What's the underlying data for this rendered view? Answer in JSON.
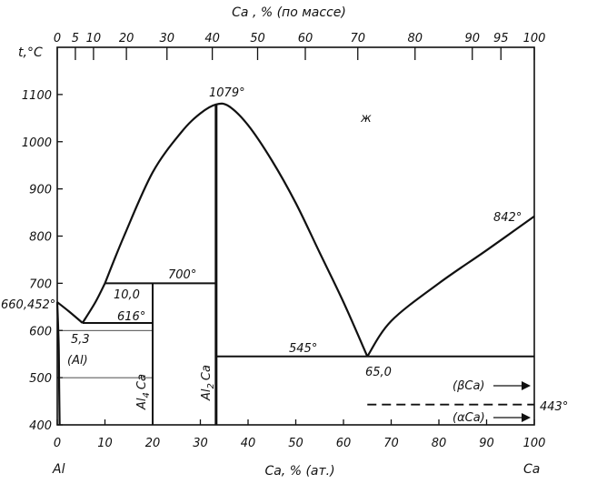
{
  "diagram": {
    "y_axis": {
      "label": "t,°C",
      "ticks": [
        400,
        500,
        600,
        700,
        800,
        900,
        1000,
        1100
      ],
      "range": [
        400,
        1200
      ]
    },
    "x_axis_bottom": {
      "title": "Ca, % (ат.)",
      "ticks": [
        "0",
        "10",
        "20",
        "30",
        "40",
        "50",
        "60",
        "70",
        "80",
        "90",
        "100"
      ],
      "left_end": "Al",
      "right_end": "Ca",
      "range": [
        0,
        100
      ]
    },
    "x_axis_top": {
      "title": "Ca , % (по массе)",
      "ticks": [
        {
          "label": "0",
          "at": 0
        },
        {
          "label": "5",
          "at": 3.8
        },
        {
          "label": "10",
          "at": 7.6
        },
        {
          "label": "20",
          "at": 14.5
        },
        {
          "label": "30",
          "at": 23
        },
        {
          "label": "40",
          "at": 32.5
        },
        {
          "label": "50",
          "at": 42
        },
        {
          "label": "60",
          "at": 52
        },
        {
          "label": "70",
          "at": 63
        },
        {
          "label": "80",
          "at": 75
        },
        {
          "label": "90",
          "at": 87
        },
        {
          "label": "95",
          "at": 93
        },
        {
          "label": "100",
          "at": 100
        }
      ]
    },
    "annotations": {
      "al_melt": "660,452°",
      "congruent": "1079°",
      "liquid": "ж",
      "ca_melt": "842°",
      "peritectic": "700°",
      "peri_comp": "10,0",
      "eutectic1": "616°",
      "eut1_comp": "5,3",
      "al_solid": "(Al)",
      "eutectic2": "545°",
      "eut2_comp": "65,0",
      "phase1": "Al4Ca",
      "phase1_base": "Al",
      "phase1_sub": "4",
      "phase1_tail": "Ca",
      "phase2_base": "Al",
      "phase2_sub": "2",
      "phase2_tail": "Ca",
      "beta": "(βCa)",
      "alpha": "(αCa)",
      "transition": "443°"
    },
    "curves": {
      "liquidus_al": [
        [
          0,
          660
        ],
        [
          2.5,
          640
        ],
        [
          5.3,
          616
        ]
      ],
      "liquidus_al4ca": [
        [
          5.3,
          616
        ],
        [
          8,
          660
        ],
        [
          10,
          700
        ]
      ],
      "liquidus_al2ca": [
        [
          10,
          700
        ],
        [
          14,
          800
        ],
        [
          20,
          935
        ],
        [
          26,
          1020
        ],
        [
          30,
          1060
        ],
        [
          33.3,
          1079
        ],
        [
          36,
          1075
        ],
        [
          40,
          1035
        ],
        [
          45,
          960
        ],
        [
          50,
          870
        ],
        [
          55,
          765
        ],
        [
          60,
          660
        ],
        [
          65,
          545
        ]
      ],
      "liquidus_ca": [
        [
          65,
          545
        ],
        [
          70,
          620
        ],
        [
          80,
          700
        ],
        [
          90,
          770
        ],
        [
          100,
          842
        ]
      ],
      "al_solidus": [
        [
          0,
          660
        ],
        [
          0.3,
          570
        ],
        [
          0.4,
          480
        ],
        [
          0.5,
          400
        ]
      ],
      "isotherm_616": [
        [
          5.3,
          616
        ],
        [
          20,
          616
        ]
      ],
      "isotherm_700": [
        [
          10,
          700
        ],
        [
          33.3,
          700
        ]
      ],
      "isotherm_545": [
        [
          33.3,
          545
        ],
        [
          100,
          545
        ]
      ],
      "line_al4ca": [
        [
          20,
          400
        ],
        [
          20,
          700
        ]
      ],
      "line_al2ca": [
        [
          33.3,
          400
        ],
        [
          33.3,
          1079
        ]
      ],
      "beta_alpha": [
        [
          65,
          443
        ],
        [
          100,
          443
        ]
      ]
    }
  }
}
